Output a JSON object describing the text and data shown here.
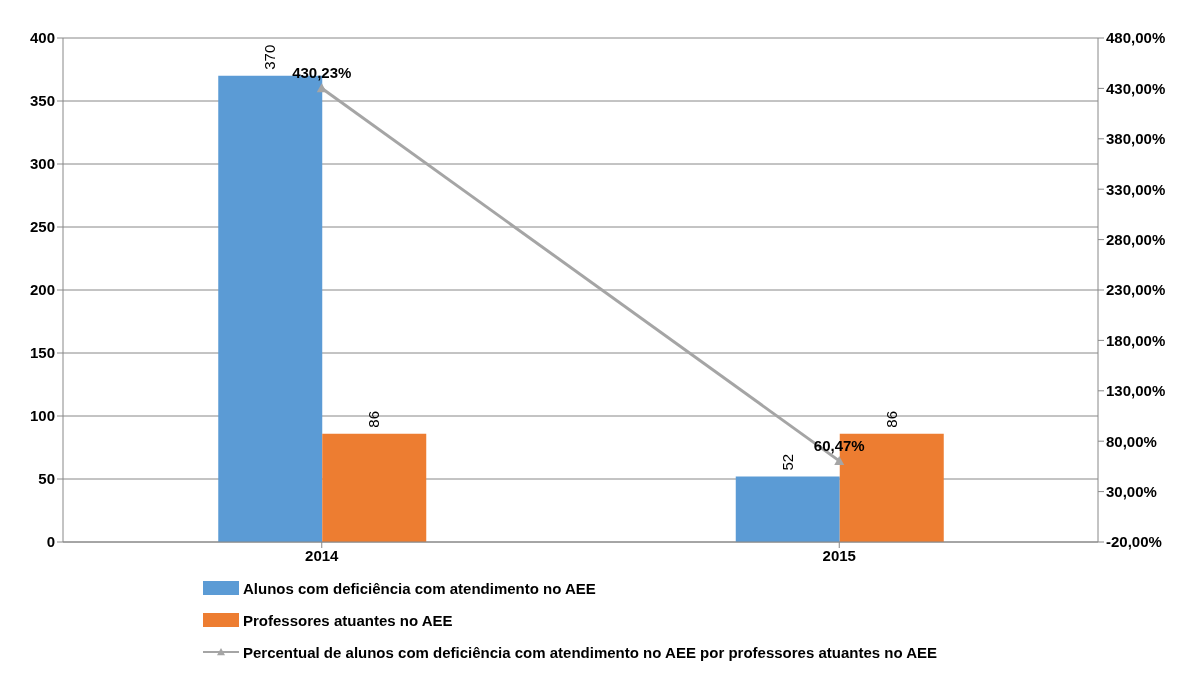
{
  "chart_data": {
    "type": "bar",
    "categories": [
      "2014",
      "2015"
    ],
    "series": [
      {
        "name": "Alunos com deficiência com atendimento no AEE",
        "color": "#5b9bd5",
        "values": [
          370,
          52
        ],
        "value_labels": [
          "370",
          "52"
        ]
      },
      {
        "name": "Professores atuantes no AEE",
        "color": "#ed7d31",
        "values": [
          86,
          86
        ],
        "value_labels": [
          "86",
          "86"
        ]
      },
      {
        "name": "Percentual de alunos com deficiência com atendimento no AEE por professores atuantes no AEE",
        "type": "line",
        "axis": "y2",
        "color": "#a5a5a5",
        "marker": "triangle",
        "values": [
          430.23,
          60.47
        ],
        "value_labels": [
          "430,23%",
          "60,47%"
        ]
      }
    ],
    "ylim": [
      0,
      400
    ],
    "yticks": [
      0,
      50,
      100,
      150,
      200,
      250,
      300,
      350,
      400
    ],
    "y2lim": [
      -20,
      480
    ],
    "y2ticks": [
      {
        "value": -20,
        "label": "-20,00%"
      },
      {
        "value": 30,
        "label": "30,00%"
      },
      {
        "value": 80,
        "label": "80,00%"
      },
      {
        "value": 130,
        "label": "130,00%"
      },
      {
        "value": 180,
        "label": "180,00%"
      },
      {
        "value": 230,
        "label": "230,00%"
      },
      {
        "value": 280,
        "label": "280,00%"
      },
      {
        "value": 330,
        "label": "330,00%"
      },
      {
        "value": 380,
        "label": "380,00%"
      },
      {
        "value": 430,
        "label": "430,00%"
      },
      {
        "value": 480,
        "label": "480,00%"
      }
    ],
    "grid": "y",
    "legend": "bottom"
  }
}
